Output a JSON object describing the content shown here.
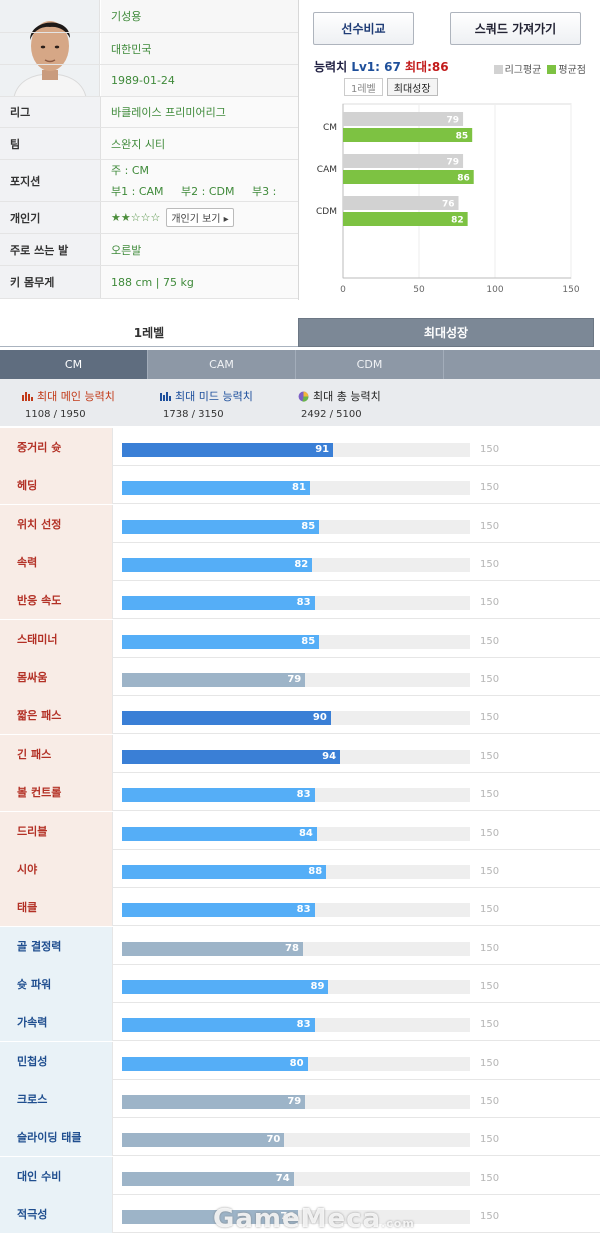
{
  "player": {
    "name": "기성용",
    "country": "대한민국",
    "birth": "1989-01-24"
  },
  "info_rows": [
    {
      "label": "리그",
      "value": "바클레이스 프리미어리그"
    },
    {
      "label": "팀",
      "value": "스완지 시티"
    },
    {
      "label": "포지션",
      "main": "주 : CM",
      "subs": [
        "부1 : CAM",
        "부2 : CDM",
        "부3 :"
      ]
    },
    {
      "label": "개인기",
      "stars": "★★☆☆☆",
      "button": "개인기 보기 ▸"
    },
    {
      "label": "주로 쓰는 발",
      "value": "오른발"
    },
    {
      "label": "키 몸무게",
      "value": "188 cm | 75 kg"
    }
  ],
  "buttons": {
    "compare": "선수비교",
    "squad": "스쿼드 가져가기"
  },
  "ability": {
    "title": "능력치",
    "lv": "Lv1: 67",
    "max": "최대:86"
  },
  "legend": [
    {
      "label": "리그평균",
      "color": "#d2d2d2"
    },
    {
      "label": "평균점",
      "color": "#7dc242"
    }
  ],
  "mini_tabs": [
    {
      "label": "1레벨",
      "active": false
    },
    {
      "label": "최대성장",
      "active": true
    }
  ],
  "chart_data": {
    "type": "bar",
    "orientation": "horizontal",
    "categories": [
      "CM",
      "CAM",
      "CDM"
    ],
    "series": [
      {
        "name": "리그평균",
        "values": [
          79,
          79,
          76
        ],
        "color": "#d2d2d2"
      },
      {
        "name": "평균점",
        "values": [
          85,
          86,
          82
        ],
        "color": "#7dc242"
      }
    ],
    "xticks": [
      0,
      50,
      100,
      150
    ],
    "xlim": [
      0,
      150
    ]
  },
  "level_tabs": [
    {
      "label": "1레벨",
      "active": false
    },
    {
      "label": "최대성장",
      "active": true
    }
  ],
  "pos_tabs": [
    {
      "label": "CM",
      "active": true
    },
    {
      "label": "CAM",
      "active": false
    },
    {
      "label": "CDM",
      "active": false
    },
    {
      "label": "",
      "active": false
    }
  ],
  "summary": {
    "main": {
      "label": "최대 메인 능력치",
      "value": "1108 / 1950"
    },
    "mid": {
      "label": "최대 미드 능력치",
      "value": "1738 / 3150"
    },
    "total": {
      "label": "최대 총 능력치",
      "value": "2492 / 5100"
    }
  },
  "colors": {
    "high": "#3a7fd6",
    "normal": "#55aef7",
    "low": "#9db4c8"
  },
  "stat_max": 150,
  "stats": [
    {
      "label": "중거리 슛",
      "value": 91,
      "group": "main",
      "tier": "high"
    },
    {
      "label": "헤딩",
      "value": 81,
      "group": "main",
      "tier": "normal"
    },
    {
      "label": "위치 선정",
      "value": 85,
      "group": "main",
      "tier": "normal"
    },
    {
      "label": "속력",
      "value": 82,
      "group": "main",
      "tier": "normal"
    },
    {
      "label": "반응 속도",
      "value": 83,
      "group": "main",
      "tier": "normal"
    },
    {
      "label": "스태미너",
      "value": 85,
      "group": "main",
      "tier": "normal"
    },
    {
      "label": "몸싸움",
      "value": 79,
      "group": "main",
      "tier": "low"
    },
    {
      "label": "짧은 패스",
      "value": 90,
      "group": "main",
      "tier": "high"
    },
    {
      "label": "긴 패스",
      "value": 94,
      "group": "main",
      "tier": "high"
    },
    {
      "label": "볼 컨트롤",
      "value": 83,
      "group": "main",
      "tier": "normal"
    },
    {
      "label": "드리블",
      "value": 84,
      "group": "main",
      "tier": "normal"
    },
    {
      "label": "시야",
      "value": 88,
      "group": "main",
      "tier": "normal"
    },
    {
      "label": "태클",
      "value": 83,
      "group": "main",
      "tier": "normal"
    },
    {
      "label": "골 결정력",
      "value": 78,
      "group": "mid",
      "tier": "low"
    },
    {
      "label": "슛 파워",
      "value": 89,
      "group": "mid",
      "tier": "normal"
    },
    {
      "label": "가속력",
      "value": 83,
      "group": "mid",
      "tier": "normal"
    },
    {
      "label": "민첩성",
      "value": 80,
      "group": "mid",
      "tier": "normal"
    },
    {
      "label": "크로스",
      "value": 79,
      "group": "mid",
      "tier": "low"
    },
    {
      "label": "슬라이딩 태클",
      "value": 70,
      "group": "mid",
      "tier": "low"
    },
    {
      "label": "대인 수비",
      "value": 74,
      "group": "mid",
      "tier": "low"
    },
    {
      "label": "적극성",
      "value": 76,
      "group": "mid",
      "tier": "low"
    }
  ],
  "watermark": {
    "main": "GameMeca",
    "suffix": ".com"
  }
}
